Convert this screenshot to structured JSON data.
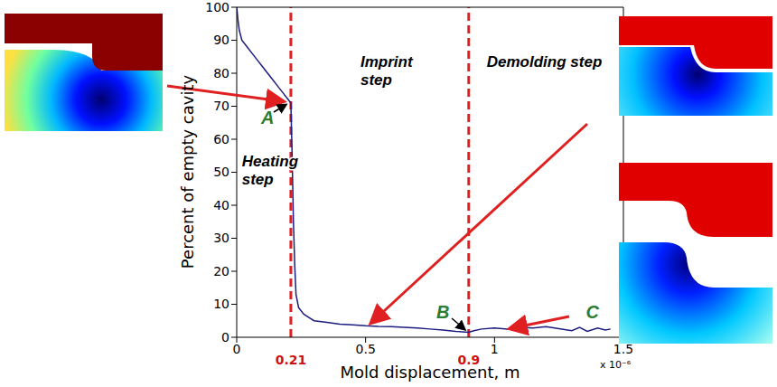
{
  "chart_data": {
    "type": "line",
    "xlabel": "Mold displacement, m",
    "ylabel": "Percent of empty cavity",
    "x_scale_note": "x 10⁻⁶",
    "xlim": [
      0,
      1.5
    ],
    "xticks": [
      0,
      0.5,
      1,
      1.5
    ],
    "ylim": [
      0,
      100
    ],
    "yticks": [
      0,
      10,
      20,
      30,
      40,
      50,
      60,
      70,
      80,
      90,
      100
    ],
    "grid": false,
    "color": "#1c1c80",
    "x": [
      0,
      0.005,
      0.01,
      0.02,
      0.04,
      0.06,
      0.08,
      0.1,
      0.12,
      0.14,
      0.16,
      0.18,
      0.2,
      0.21,
      0.215,
      0.22,
      0.225,
      0.23,
      0.24,
      0.26,
      0.28,
      0.3,
      0.35,
      0.4,
      0.45,
      0.5,
      0.55,
      0.6,
      0.65,
      0.7,
      0.75,
      0.8,
      0.85,
      0.9,
      0.92,
      0.95,
      1.0,
      1.05,
      1.1,
      1.15,
      1.2,
      1.25,
      1.3,
      1.33,
      1.36,
      1.4,
      1.43,
      1.45
    ],
    "values": [
      100,
      96,
      93,
      90,
      88,
      86,
      84,
      82,
      80,
      78,
      76,
      74,
      72,
      71,
      55,
      35,
      22,
      13,
      9,
      7,
      6,
      5,
      4.5,
      4,
      3.8,
      3.5,
      3.3,
      3.2,
      3,
      2.8,
      2.5,
      2.2,
      1.8,
      1.5,
      2,
      2.5,
      2.8,
      2.5,
      3,
      2.8,
      3.2,
      2.6,
      2,
      3,
      1.8,
      2.8,
      2.2,
      2.5
    ],
    "vlines": [
      0.21,
      0.9
    ],
    "annotations": [
      {
        "text": "Heating step",
        "x": 0.02,
        "y": 53,
        "color": "#000000"
      },
      {
        "text": "Imprint step",
        "x": 0.48,
        "y": 83,
        "color": "#000000"
      },
      {
        "text": "Demolding step",
        "x": 0.97,
        "y": 83,
        "color": "#000000"
      },
      {
        "text": "A",
        "x": 0.12,
        "y": 66,
        "color": "#2e7d32"
      },
      {
        "text": "B",
        "x": 0.8,
        "y": 7,
        "color": "#2e7d32"
      },
      {
        "text": "C",
        "x": 1.38,
        "y": 7,
        "color": "#2e7d32"
      }
    ]
  }
}
